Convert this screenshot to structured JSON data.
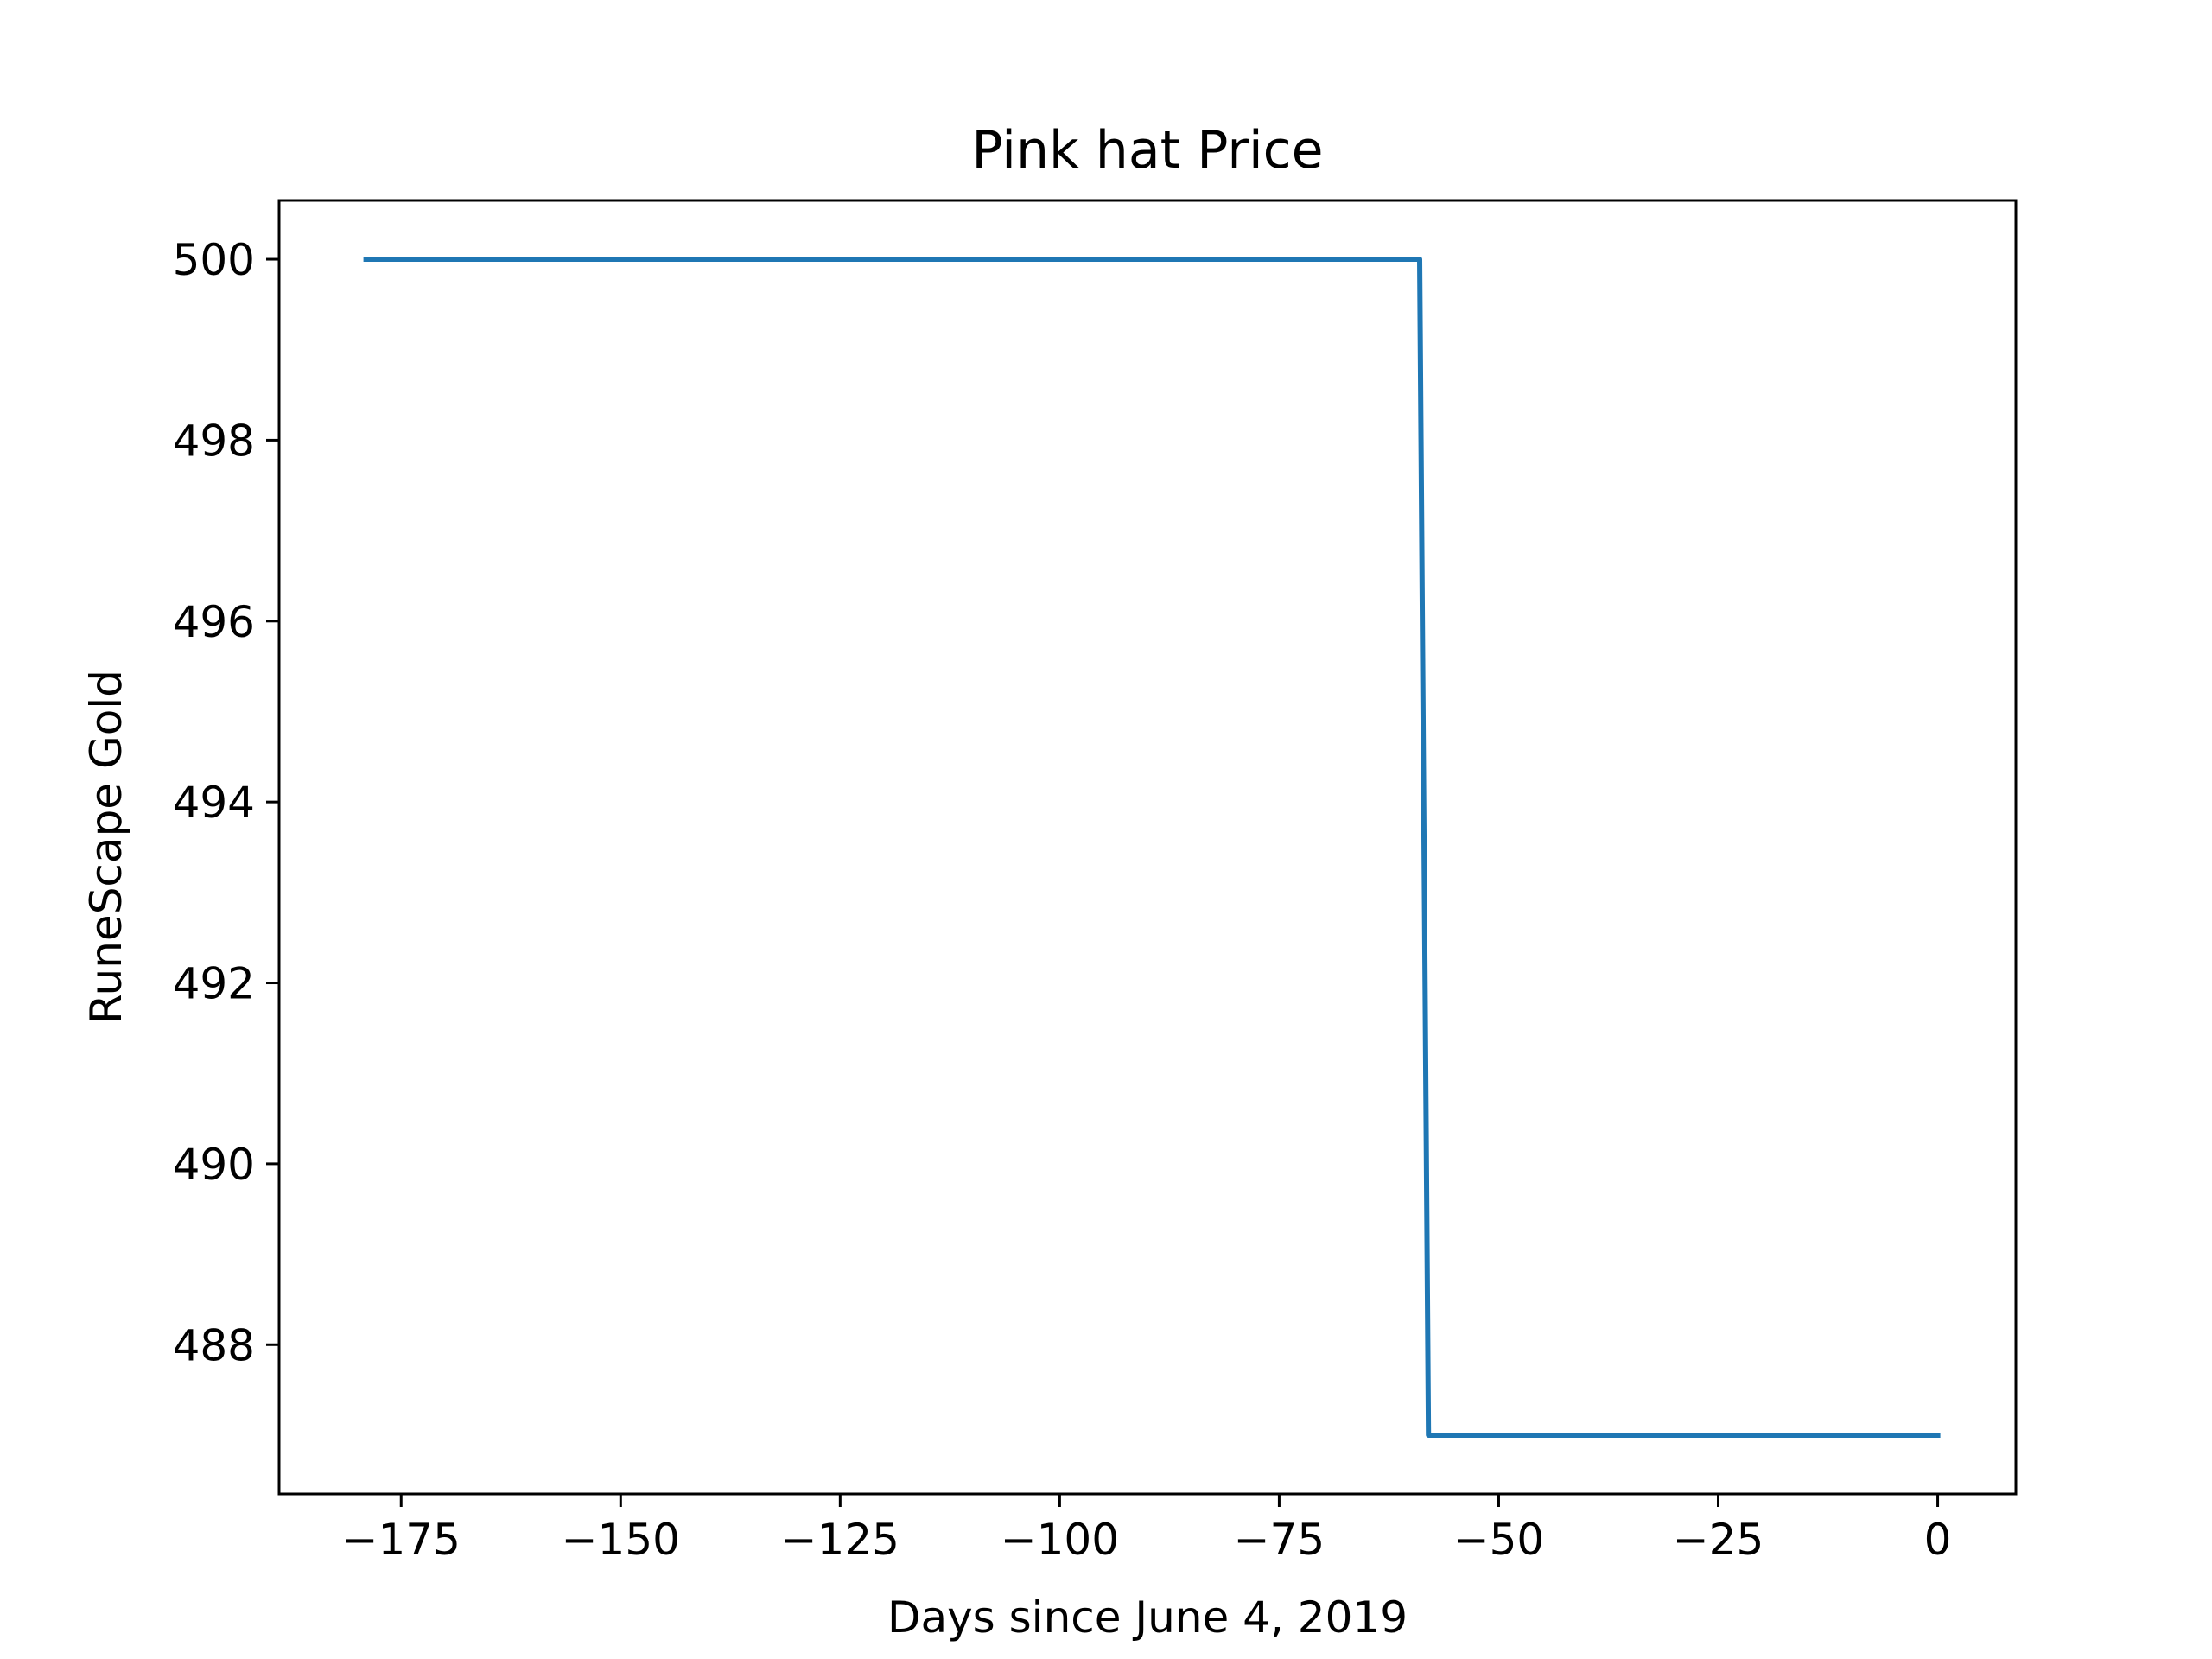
{
  "chart_data": {
    "type": "line",
    "title": "Pink hat Price",
    "xlabel": "Days since June 4, 2019",
    "ylabel": "RuneScape Gold",
    "xlim": [
      -188.9,
      8.9
    ],
    "ylim": [
      486.35,
      500.65
    ],
    "x_ticks": [
      -175,
      -150,
      -125,
      -100,
      -75,
      -50,
      -25,
      0
    ],
    "x_tick_labels": [
      "−175",
      "−150",
      "−125",
      "−100",
      "−75",
      "−50",
      "−25",
      "0"
    ],
    "y_ticks": [
      488,
      490,
      492,
      494,
      496,
      498,
      500
    ],
    "y_tick_labels": [
      "488",
      "490",
      "492",
      "494",
      "496",
      "498",
      "500"
    ],
    "grid": false,
    "series": [
      {
        "color": "#1f77b4",
        "points": [
          {
            "x": -179,
            "y": 500
          },
          {
            "x": -59,
            "y": 500
          },
          {
            "x": -58,
            "y": 487
          },
          {
            "x": 0,
            "y": 487
          }
        ]
      }
    ]
  }
}
